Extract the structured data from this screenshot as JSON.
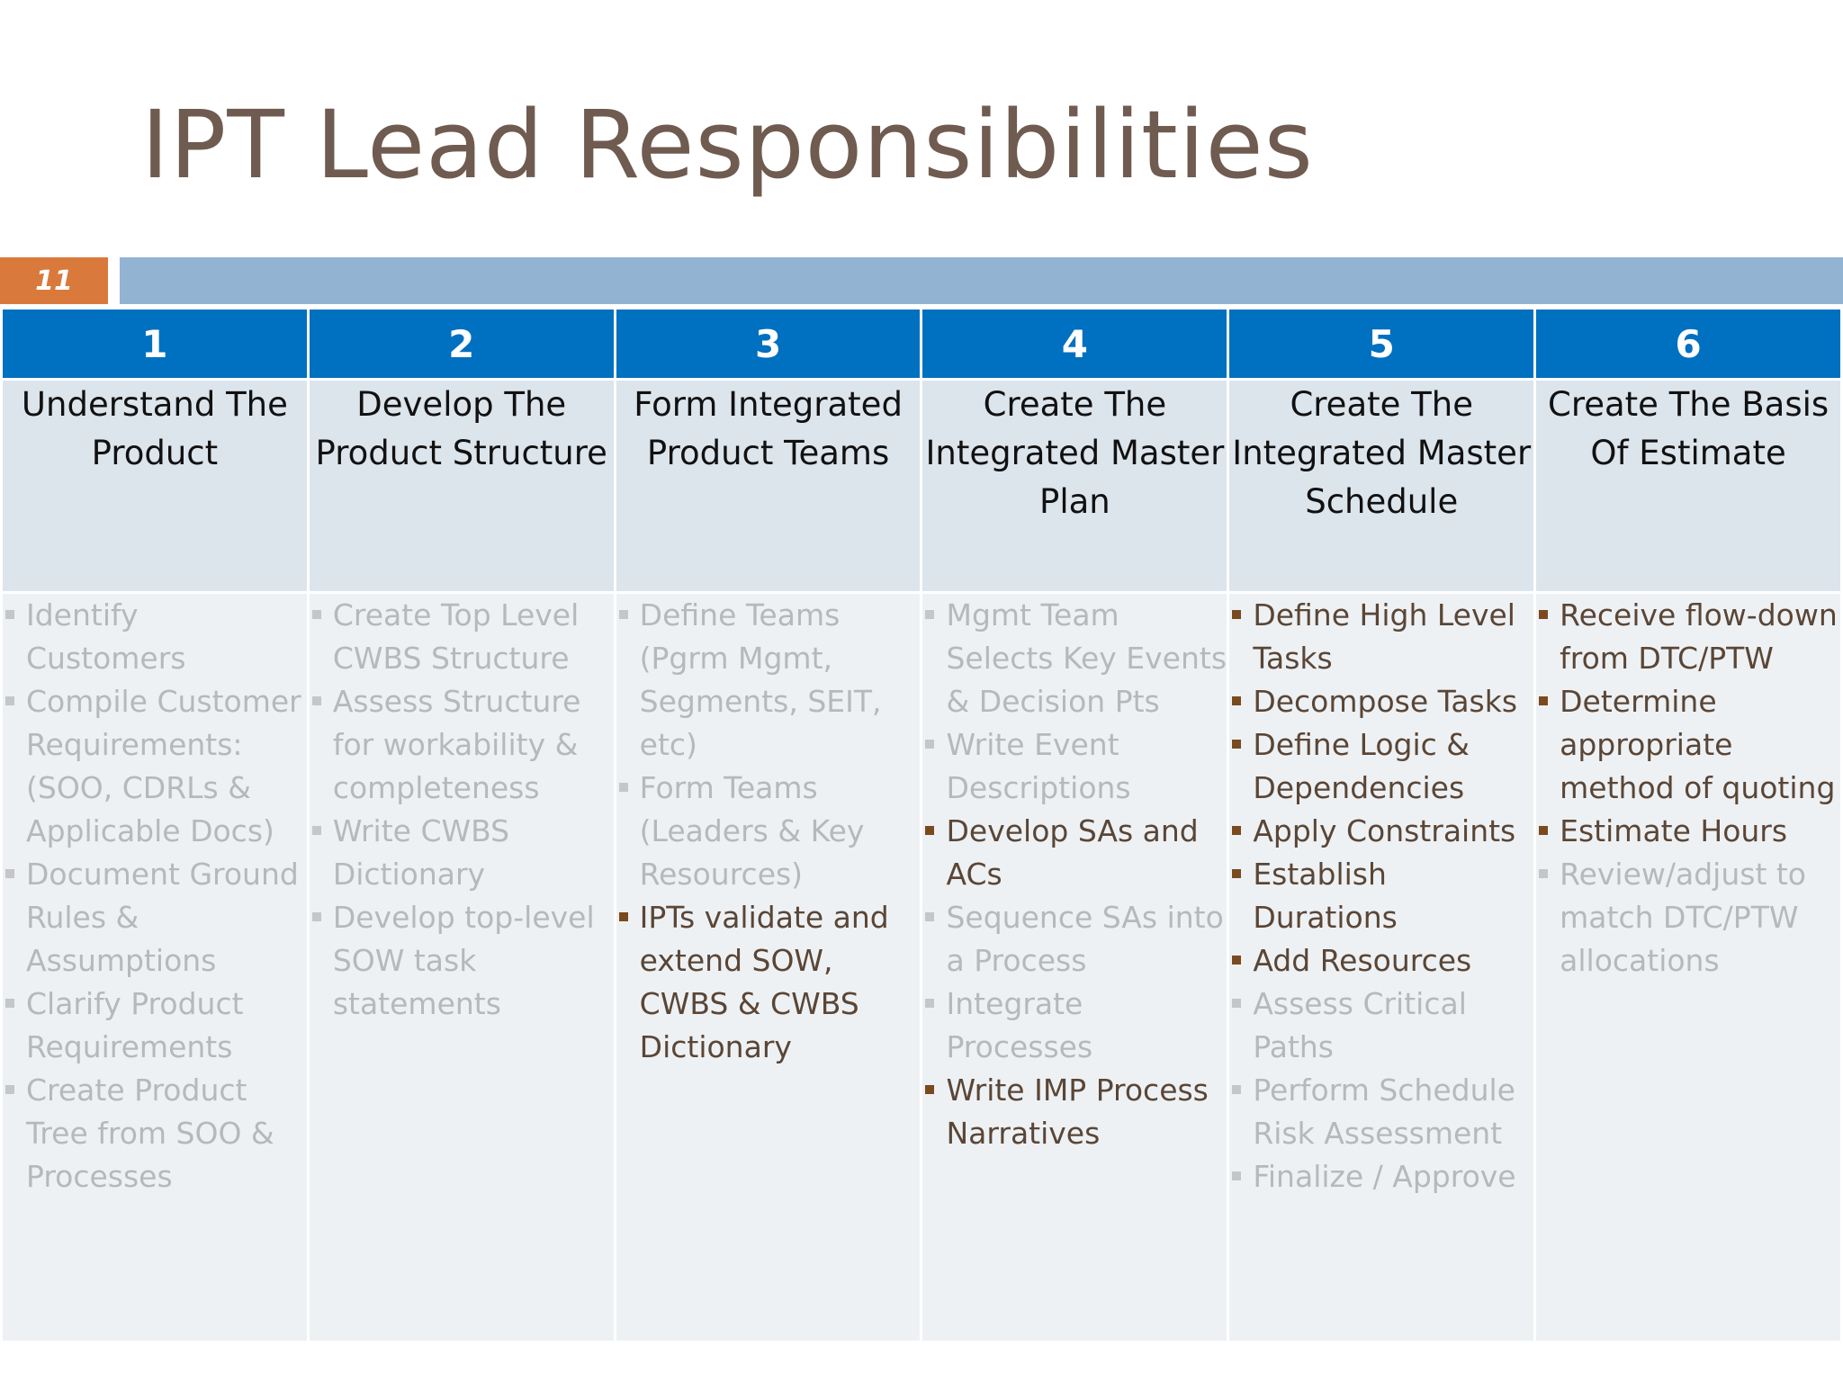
{
  "title": "IPT Lead Responsibilities",
  "slide_number": "11",
  "colors": {
    "title": "#6f5b50",
    "header_blue": "#0070c0",
    "accent_orange": "#d97a3c",
    "bar_blue": "#93b3d3",
    "active_text": "#5a4636",
    "dimmed_text": "#b6b8bb"
  },
  "columns": [
    {
      "number": "1",
      "heading": "Understand The Product",
      "items": [
        {
          "text": "Identify Customers",
          "active": false
        },
        {
          "text": "Compile Customer Requirements: (SOO, CDRLs & Applicable Docs)",
          "active": false
        },
        {
          "text": "Document Ground Rules & Assumptions",
          "active": false
        },
        {
          "text": "Clarify Product Requirements",
          "active": false
        },
        {
          "text": "Create Product Tree from SOO & Processes",
          "active": false
        }
      ]
    },
    {
      "number": "2",
      "heading": "Develop The Product Structure",
      "items": [
        {
          "text": "Create Top Level CWBS Structure",
          "active": false
        },
        {
          "text": "Assess Structure for workability & completeness",
          "active": false
        },
        {
          "text": "Write CWBS Dictionary",
          "active": false
        },
        {
          "text": "Develop top-level SOW task statements",
          "active": false
        }
      ]
    },
    {
      "number": "3",
      "heading": "Form Integrated Product Teams",
      "items": [
        {
          "text": "Define Teams (Pgrm Mgmt, Segments, SEIT, etc)",
          "active": false
        },
        {
          "text": "Form Teams (Leaders & Key Resources)",
          "active": false
        },
        {
          "text": "IPTs validate and extend SOW, CWBS & CWBS Dictionary",
          "active": true
        }
      ]
    },
    {
      "number": "4",
      "heading": "Create The Integrated Master Plan",
      "items": [
        {
          "text": "Mgmt Team Selects Key Events & Decision Pts",
          "active": false
        },
        {
          "text": "Write Event Descriptions",
          "active": false
        },
        {
          "text": "Develop SAs and ACs",
          "active": true
        },
        {
          "text": "Sequence SAs into a Process",
          "active": false
        },
        {
          "text": "Integrate Processes",
          "active": false
        },
        {
          "text": "Write IMP Process Narratives",
          "active": true
        }
      ]
    },
    {
      "number": "5",
      "heading": "Create The Integrated Master Schedule",
      "items": [
        {
          "text": "Define High Level Tasks",
          "active": true
        },
        {
          "text": "Decompose Tasks",
          "active": true
        },
        {
          "text": "Define Logic & Dependencies",
          "active": true
        },
        {
          "text": "Apply Constraints",
          "active": true
        },
        {
          "text": "Establish Durations",
          "active": true
        },
        {
          "text": "Add Resources",
          "active": true
        },
        {
          "text": "Assess Critical Paths",
          "active": false
        },
        {
          "text": "Perform Schedule Risk Assessment",
          "active": false
        },
        {
          "text": "Finalize / Approve",
          "active": false
        }
      ]
    },
    {
      "number": "6",
      "heading": "Create The Basis Of Estimate",
      "items": [
        {
          "text": "Receive flow-down from DTC/PTW",
          "active": true
        },
        {
          "text": "Determine appropriate method of quoting",
          "active": true
        },
        {
          "text": "Estimate Hours",
          "active": true
        },
        {
          "text": "Review/adjust to match DTC/PTW allocations",
          "active": false
        }
      ]
    }
  ]
}
